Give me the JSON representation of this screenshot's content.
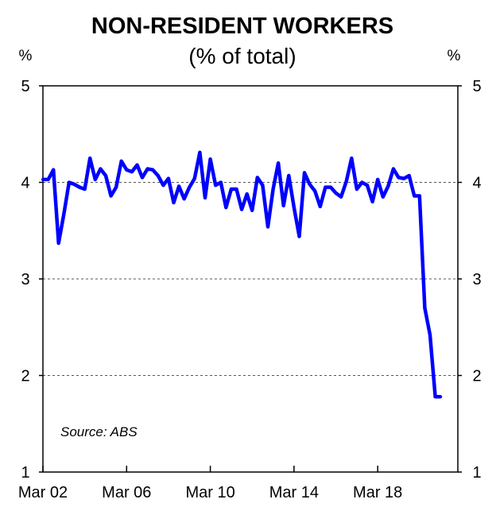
{
  "chart_data": {
    "type": "line",
    "title": "NON-RESIDENT WORKERS",
    "subtitle": "(% of total)",
    "ylabel_left": "%",
    "ylabel_right": "%",
    "ylim": [
      1,
      5
    ],
    "yticks": [
      1,
      2,
      3,
      4,
      5
    ],
    "y_tick_labels": [
      "1",
      "2",
      "3",
      "4",
      "5"
    ],
    "grid": "horizontal dashed",
    "x_tick_labels": [
      "Mar 02",
      "Mar 06",
      "Mar 10",
      "Mar 14",
      "Mar 18"
    ],
    "x_tick_positions": [
      2002.17,
      2006.17,
      2010.17,
      2014.17,
      2018.17
    ],
    "xlim": [
      2002.17,
      2022.0
    ],
    "source_note": "Source: ABS",
    "line_color": "#0000ff",
    "series": [
      {
        "x": [
          2002.17,
          2002.42,
          2002.67,
          2002.92,
          2003.17,
          2003.42,
          2003.67,
          2003.92,
          2004.17,
          2004.42,
          2004.67,
          2004.92,
          2005.17,
          2005.42,
          2005.67,
          2005.92,
          2006.17,
          2006.42,
          2006.67,
          2006.92,
          2007.17,
          2007.42,
          2007.67,
          2007.92,
          2008.17,
          2008.42,
          2008.67,
          2008.92,
          2009.17,
          2009.42,
          2009.67,
          2009.92,
          2010.17,
          2010.42,
          2010.67,
          2010.92,
          2011.17,
          2011.42,
          2011.67,
          2011.92,
          2012.17,
          2012.42,
          2012.67,
          2012.92,
          2013.17,
          2013.42,
          2013.67,
          2013.92,
          2014.17,
          2014.42,
          2014.67,
          2014.92,
          2015.17,
          2015.42,
          2015.67,
          2015.92,
          2016.17,
          2016.42,
          2016.67,
          2016.92,
          2017.17,
          2017.42,
          2017.67,
          2017.92,
          2018.17,
          2018.42,
          2018.67,
          2018.92,
          2019.17,
          2019.42,
          2019.67,
          2019.92,
          2020.17,
          2020.42,
          2020.67,
          2020.92,
          2021.17
        ],
        "values": [
          4.03,
          4.03,
          4.13,
          3.37,
          3.67,
          4.0,
          3.98,
          3.95,
          3.93,
          4.25,
          4.03,
          4.14,
          4.07,
          3.86,
          3.95,
          4.22,
          4.13,
          4.11,
          4.18,
          4.05,
          4.14,
          4.13,
          4.07,
          3.97,
          4.04,
          3.79,
          3.96,
          3.83,
          3.95,
          4.04,
          4.31,
          3.84,
          4.24,
          3.97,
          4.0,
          3.74,
          3.93,
          3.93,
          3.72,
          3.88,
          3.71,
          4.05,
          3.97,
          3.54,
          3.93,
          4.2,
          3.76,
          4.07,
          3.74,
          3.44,
          4.1,
          3.98,
          3.91,
          3.75,
          3.95,
          3.95,
          3.89,
          3.85,
          4.01,
          4.25,
          3.93,
          4.0,
          3.97,
          3.8,
          4.03,
          3.85,
          3.96,
          4.14,
          4.05,
          4.04,
          4.07,
          3.86,
          3.86,
          2.7,
          2.42,
          1.78,
          1.78
        ]
      }
    ]
  }
}
